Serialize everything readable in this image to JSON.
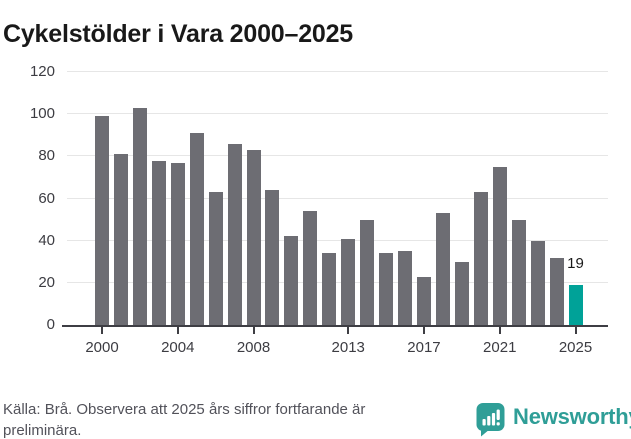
{
  "title": "Cykelstölder i Vara 2000–2025",
  "chart_data": {
    "type": "bar",
    "title": "Cykelstölder i Vara 2000–2025",
    "categories": [
      2000,
      2001,
      2002,
      2003,
      2004,
      2005,
      2006,
      2007,
      2008,
      2009,
      2010,
      2011,
      2012,
      2013,
      2014,
      2015,
      2016,
      2017,
      2018,
      2019,
      2020,
      2021,
      2022,
      2023,
      2024,
      2025
    ],
    "values": [
      99,
      81,
      103,
      78,
      77,
      91,
      63,
      86,
      83,
      64,
      42,
      54,
      34,
      41,
      50,
      34,
      35,
      23,
      53,
      30,
      63,
      75,
      50,
      40,
      32,
      19
    ],
    "highlight_index": 25,
    "highlight_value_label": "19",
    "xlabel": "",
    "ylabel": "",
    "ylim": [
      0,
      120
    ],
    "yticks": [
      0,
      20,
      40,
      60,
      80,
      100,
      120
    ],
    "xticks": [
      2000,
      2004,
      2008,
      2013,
      2017,
      2021,
      2025
    ],
    "grid": true,
    "legend": "none",
    "bar_color": "#6d6d73",
    "highlight_color": "#00a298"
  },
  "footer": {
    "source_note": "Källa: Brå. Observera att 2025 års siffror fortfarande är preliminära.",
    "brand": "Newsworthy"
  },
  "colors": {
    "title_text": "#191919",
    "axis_text": "#3c3c42",
    "axis_line": "#3e3e44",
    "gridline": "#e6e6e6",
    "footer_text": "#52525a",
    "brand_teal": "#2f9e97"
  }
}
